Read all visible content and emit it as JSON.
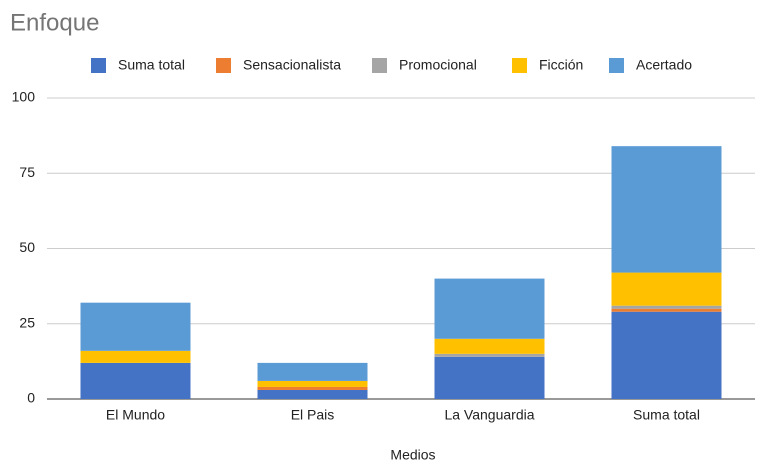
{
  "chart_data": {
    "type": "stacked_bar",
    "title": "Enfoque",
    "x_label": "Medios",
    "categories": [
      "El Mundo",
      "El Pais",
      "La Vanguardia",
      "Suma total"
    ],
    "series": [
      {
        "name": "Acertado",
        "color": "#4472c4",
        "values": [
          12,
          3,
          14,
          29
        ]
      },
      {
        "name": "Ficción",
        "color": "#ed7d31",
        "values": [
          0,
          1,
          0,
          1
        ]
      },
      {
        "name": "Promocional",
        "color": "#a5a5a5",
        "values": [
          0,
          0,
          1,
          1
        ]
      },
      {
        "name": "Sensacionalista",
        "color": "#ffc000",
        "values": [
          4,
          2,
          5,
          11
        ]
      },
      {
        "name": "Suma total",
        "color": "#5b9bd5",
        "values": [
          16,
          6,
          20,
          42
        ]
      }
    ],
    "ylim": [
      0,
      100
    ],
    "yticks": [
      0,
      25,
      50,
      75,
      100
    ],
    "grid": true,
    "legend": "top"
  }
}
